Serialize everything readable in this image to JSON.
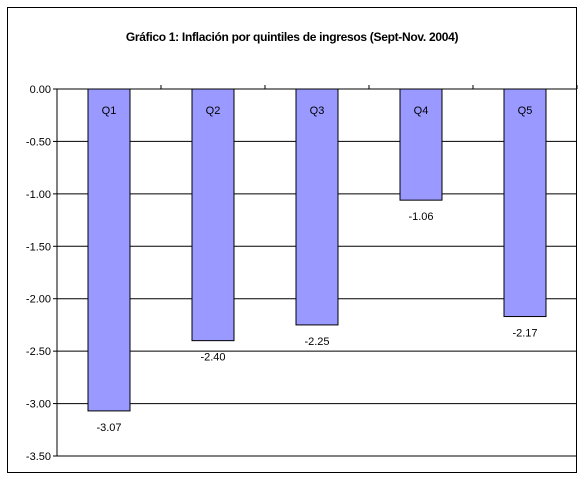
{
  "chart_data": {
    "type": "bar",
    "title": "Gráfico 1: Inflación por quintiles de ingresos (Sept-Nov. 2004)",
    "categories": [
      "Q1",
      "Q2",
      "Q3",
      "Q4",
      "Q5"
    ],
    "values": [
      -3.07,
      -2.4,
      -2.25,
      -1.06,
      -2.17
    ],
    "data_labels": [
      "-3.07",
      "-2.40",
      "-2.25",
      "-1.06",
      "-2.17"
    ],
    "ylim": [
      -3.5,
      0
    ],
    "yticks": [
      "0.00",
      "-0.50",
      "-1.00",
      "-1.50",
      "-2.00",
      "-2.50",
      "-3.00",
      "-3.50"
    ],
    "ytick_values": [
      0,
      -0.5,
      -1,
      -1.5,
      -2,
      -2.5,
      -3,
      -3.5
    ],
    "grid": true,
    "legend": false,
    "colors": {
      "bar_fill": "#9999ff",
      "bar_stroke": "#000000",
      "grid": "#000000"
    }
  }
}
